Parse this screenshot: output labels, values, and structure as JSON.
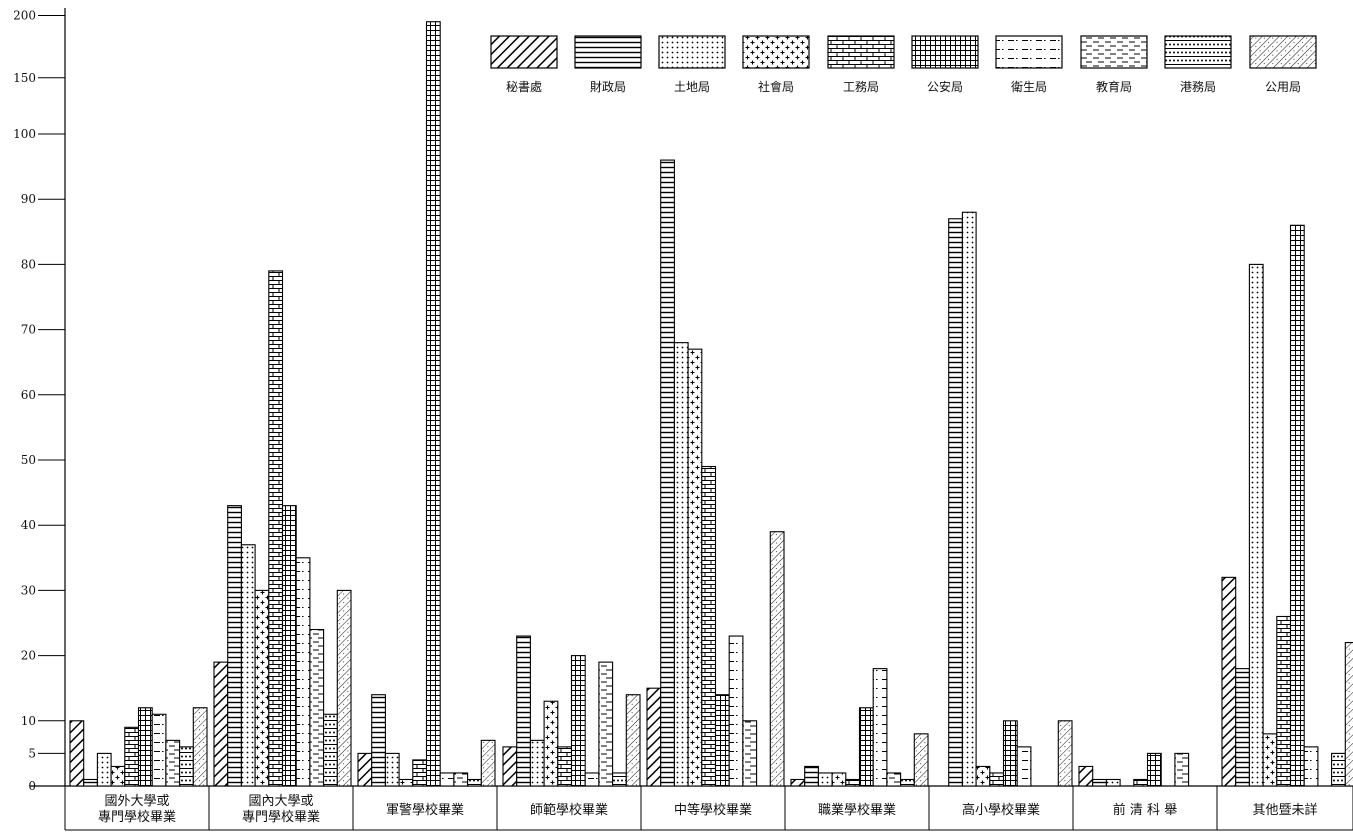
{
  "chart_data": {
    "type": "bar",
    "title": "",
    "xlabel": "",
    "ylabel": "",
    "ylim": [
      0,
      200
    ],
    "y_ticks": [
      "0",
      "5",
      "10",
      "20",
      "30",
      "40",
      "50",
      "60",
      "70",
      "80",
      "90",
      "100",
      "150",
      "200"
    ],
    "y_scale": "piecewise: linear 0–100, compressed 100–200",
    "grid": false,
    "legend_position": "top-right",
    "categories": [
      "國外大學或\n專門學校畢業",
      "國內大學或\n專門學校畢業",
      "軍警學校畢業",
      "師範學校畢業",
      "中等學校畢業",
      "職業學校畢業",
      "高小學校畢業",
      "前 清 科 舉",
      "其他暨未詳"
    ],
    "series": [
      {
        "name": "秘書處",
        "pattern": "diagonal",
        "values": [
          10,
          19,
          5,
          6,
          15,
          1,
          0,
          3,
          32
        ]
      },
      {
        "name": "財政局",
        "pattern": "horizontal",
        "values": [
          1,
          43,
          14,
          23,
          96,
          3,
          87,
          1,
          18
        ]
      },
      {
        "name": "土地局",
        "pattern": "dots",
        "values": [
          5,
          37,
          5,
          7,
          68,
          2,
          88,
          1,
          80
        ]
      },
      {
        "name": "社會局",
        "pattern": "plus",
        "values": [
          3,
          30,
          1,
          13,
          67,
          2,
          3,
          0,
          8
        ]
      },
      {
        "name": "工務局",
        "pattern": "brick",
        "values": [
          9,
          79,
          4,
          6,
          49,
          1,
          2,
          1,
          26
        ]
      },
      {
        "name": "公安局",
        "pattern": "grid",
        "values": [
          12,
          43,
          195,
          20,
          14,
          12,
          10,
          5,
          86
        ]
      },
      {
        "name": "衛生局",
        "pattern": "dashdot",
        "values": [
          11,
          35,
          2,
          2,
          23,
          18,
          6,
          0,
          6
        ]
      },
      {
        "name": "教育局",
        "pattern": "dashed",
        "values": [
          7,
          24,
          2,
          19,
          10,
          2,
          0,
          5,
          0
        ]
      },
      {
        "name": "港務局",
        "pattern": "dotline",
        "values": [
          6,
          11,
          1,
          2,
          0,
          1,
          0,
          0,
          5
        ]
      },
      {
        "name": "公用局",
        "pattern": "finediag",
        "values": [
          12,
          30,
          7,
          14,
          39,
          8,
          10,
          0,
          22
        ]
      }
    ]
  }
}
